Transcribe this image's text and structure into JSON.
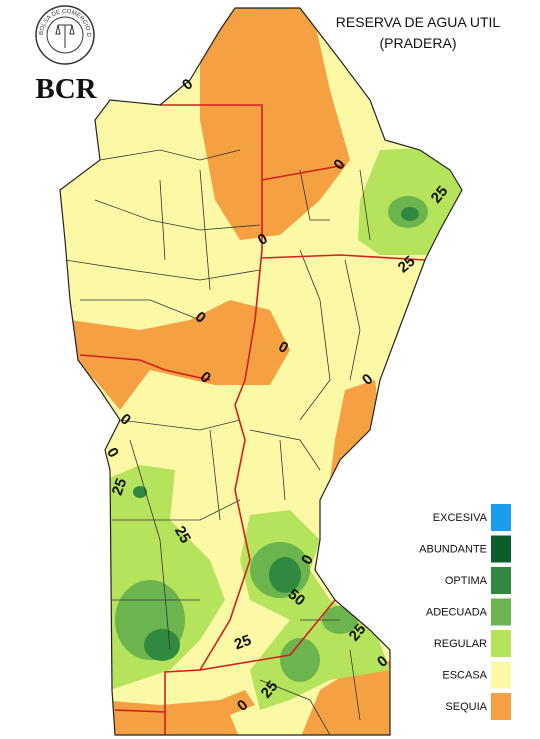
{
  "header": {
    "logo_text": "BOLSA DE COMERCIO DE ROSARIO",
    "logo_abbr": "BCR",
    "title": "RESERVA DE AGUA UTIL",
    "subtitle": "(PRADERA)"
  },
  "legend": [
    {
      "label": "EXCESIVA",
      "color": "#1a9cf0"
    },
    {
      "label": "ABUNDANTE",
      "color": "#0b5e2a"
    },
    {
      "label": "OPTIMA",
      "color": "#2f8a3f"
    },
    {
      "label": "ADECUADA",
      "color": "#6cb44e"
    },
    {
      "label": "REGULAR",
      "color": "#b6e35c"
    },
    {
      "label": "ESCASA",
      "color": "#fbf9a6"
    },
    {
      "label": "SEQUIA",
      "color": "#f5a042"
    }
  ],
  "contour_labels": [
    "0",
    "0",
    "0",
    "25",
    "25",
    "0",
    "0",
    "0",
    "0",
    "0",
    "0",
    "25",
    "25",
    "0",
    "50",
    "25",
    "25",
    "0",
    "25",
    "0"
  ]
}
